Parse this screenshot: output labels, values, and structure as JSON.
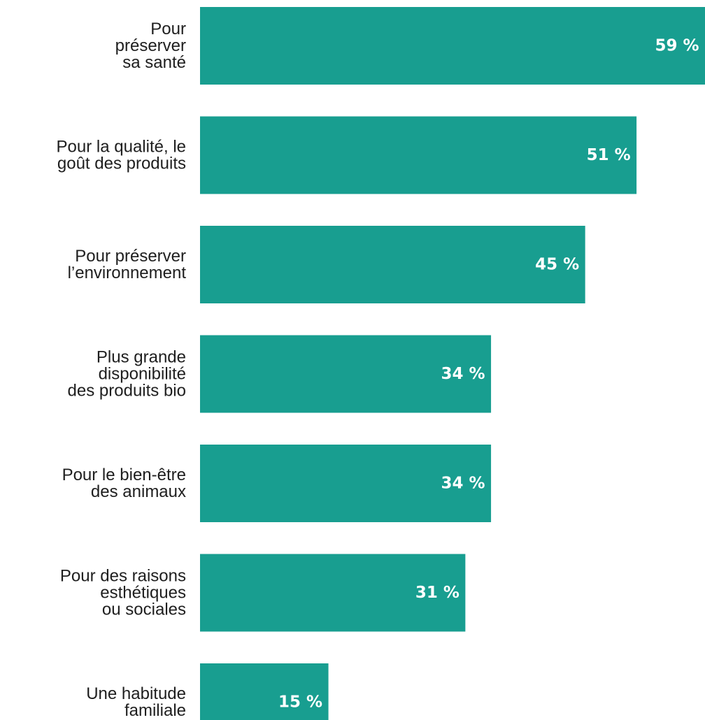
{
  "chart_data": {
    "type": "bar",
    "orientation": "horizontal",
    "categories": [
      "Pour\npréserver\nsa santé",
      "Pour la qualité, le\ngoût des produits",
      "Pour préserver\nl’environnement",
      "Plus grande\ndisponibilité\ndes produits bio",
      "Pour le bien-être\ndes animaux",
      "Pour des raisons\nesthétiques\nou sociales",
      "Une habitude\nfamiliale"
    ],
    "values": [
      59,
      51,
      45,
      34,
      34,
      31,
      15
    ],
    "value_labels": [
      "59 %",
      "51 %",
      "45 %",
      "34 %",
      "34 %",
      "31 %",
      "15 %"
    ],
    "bar_color": "#189e90",
    "value_label_color": "#ffffff",
    "category_label_color": "#1e1e1e",
    "xlim": [
      0,
      59
    ],
    "grid": false,
    "title": "",
    "xlabel": "",
    "ylabel": ""
  }
}
